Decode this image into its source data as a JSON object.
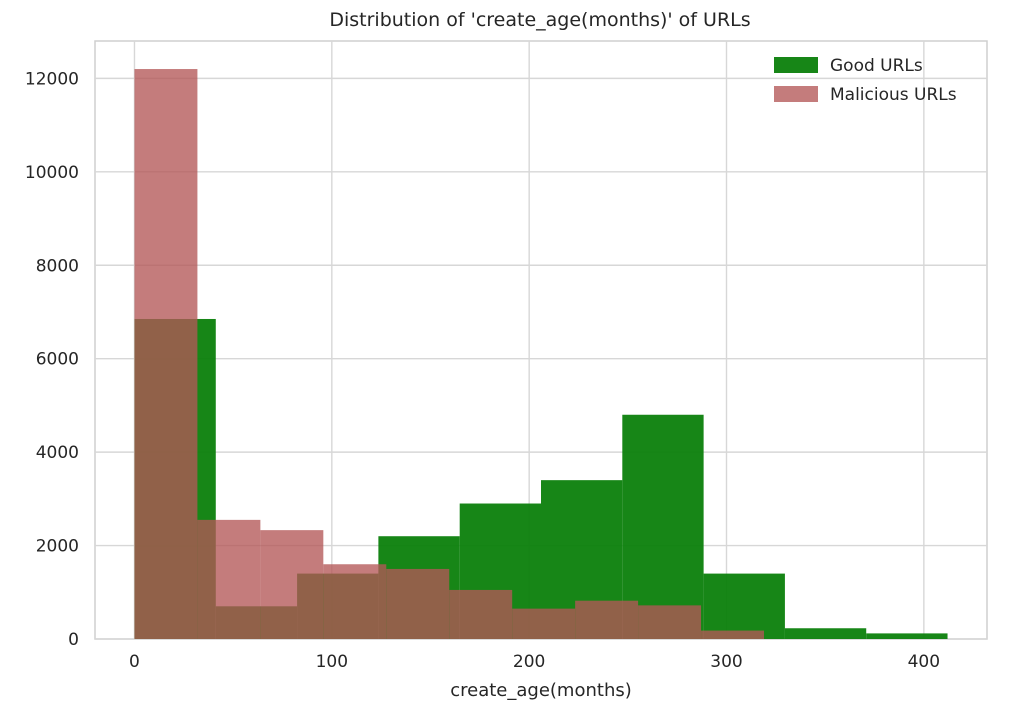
{
  "chart_data": {
    "type": "histogram",
    "title": "Distribution of 'create_age(months)' of URLs",
    "xlabel": "create_age(months)",
    "ylabel": "",
    "xlim": [
      -20,
      432
    ],
    "ylim": [
      0,
      12800
    ],
    "xticks": [
      0,
      100,
      200,
      300,
      400
    ],
    "yticks": [
      0,
      2000,
      4000,
      6000,
      8000,
      10000,
      12000
    ],
    "grid": true,
    "legend_position": "top-right",
    "series": [
      {
        "name": "Good URLs",
        "color": "#0b800b",
        "alpha": 0.95,
        "bins": [
          0,
          41.2,
          82.4,
          123.6,
          164.8,
          206,
          247.2,
          288.4,
          329.6,
          370.8,
          412
        ],
        "counts": [
          6850,
          700,
          1400,
          2200,
          2900,
          3400,
          4800,
          1400,
          230,
          120
        ]
      },
      {
        "name": "Malicious URLs",
        "color": "#b35757",
        "alpha": 0.78,
        "bins": [
          0,
          31.9,
          63.8,
          95.7,
          127.6,
          159.5,
          191.4,
          223.3,
          255.2,
          287.1,
          319
        ],
        "counts": [
          12200,
          2550,
          2330,
          1600,
          1500,
          1050,
          650,
          820,
          720,
          180
        ]
      }
    ]
  }
}
